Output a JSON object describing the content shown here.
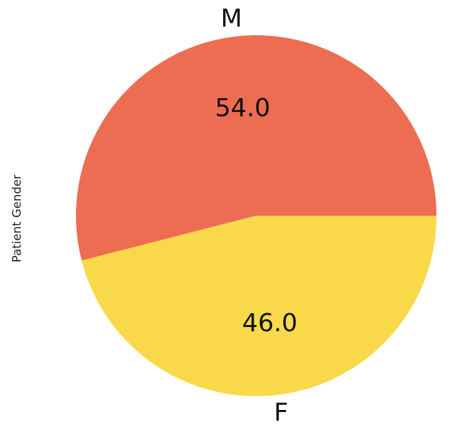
{
  "chart_data": {
    "type": "pie",
    "ylabel": "Patient Gender",
    "slices": [
      {
        "label": "M",
        "value": 54.0,
        "value_label": "54.0",
        "color": "#ED6D52"
      },
      {
        "label": "F",
        "value": 46.0,
        "value_label": "46.0",
        "color": "#F9D849"
      }
    ],
    "start_angle_deg": 0,
    "direction": "counterclockwise",
    "legend": "none"
  }
}
